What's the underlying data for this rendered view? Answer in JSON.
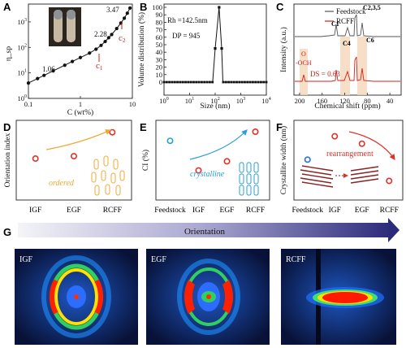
{
  "colors": {
    "red": "#d2201b",
    "orange": "#f0a830",
    "blue": "#2a9fd6",
    "arrow_red": "#e0302a",
    "dark_blue": "#2c2a7a"
  },
  "chart_data": [
    {
      "panel": "A",
      "type": "line",
      "scale": "log-log",
      "xlabel": "C (wt%)",
      "ylabel": "η_sp",
      "xticks": [
        "0.1",
        "1",
        "10"
      ],
      "yticks": [
        "10^0",
        "10^1",
        "10^2",
        "10^3"
      ],
      "x": [
        0.1,
        0.15,
        0.2,
        0.3,
        0.5,
        0.7,
        1.0,
        1.5,
        2.0,
        2.5,
        3.0,
        3.5,
        4.0,
        5.0,
        6.0,
        7.0,
        8.0,
        9.0
      ],
      "y": [
        4,
        6,
        8,
        12,
        20,
        28,
        40,
        60,
        85,
        120,
        170,
        240,
        320,
        550,
        900,
        1400,
        2200,
        3500
      ],
      "annotations": [
        "1.06",
        "2.28",
        "3.47",
        "c",
        "1",
        "c",
        "2"
      ]
    },
    {
      "panel": "B",
      "type": "line",
      "xlabel": "Size (nm)",
      "ylabel": "Volume distribution (%)",
      "xticks": [
        "10^0",
        "10^1",
        "10^2",
        "10^3",
        "10^4"
      ],
      "yticks": [
        "0",
        "10",
        "20",
        "30",
        "40",
        "50",
        "60",
        "70",
        "80",
        "90",
        "100"
      ],
      "x": [
        1,
        10,
        80,
        100,
        142.5,
        180,
        200,
        1000,
        10000
      ],
      "y": [
        0,
        0,
        0,
        45,
        100,
        45,
        0,
        0,
        0
      ],
      "annotations": [
        "Rh =142.5nm",
        "DP = 945"
      ]
    },
    {
      "panel": "C",
      "type": "line",
      "xlabel": "Chemical shift (ppm)",
      "ylabel": "Intensity (a.u.)",
      "xticks": [
        "200",
        "160",
        "120",
        "80",
        "40"
      ],
      "series": [
        {
          "name": "Feedstock"
        },
        {
          "name": "RCFF"
        }
      ],
      "peak_labels": [
        "C2,3,5",
        "C1",
        "C4",
        "C6"
      ],
      "annotations": [
        "O",
        "-OCH",
        "DS = 0.63"
      ]
    },
    {
      "panel": "D",
      "type": "scatter",
      "ylabel": "Orientation index",
      "categories": [
        "IGF",
        "EGF",
        "RCFF"
      ],
      "values": [
        0.52,
        0.55,
        0.85
      ],
      "annotations": [
        "ordered"
      ]
    },
    {
      "panel": "E",
      "type": "scatter",
      "ylabel": "CI (%)",
      "categories": [
        "Feedstock",
        "IGF",
        "EGF",
        "RCFF"
      ],
      "values": [
        52,
        26,
        34,
        60
      ],
      "annotations": [
        "crystalline"
      ]
    },
    {
      "panel": "F",
      "type": "scatter",
      "ylabel": "Crystallite width (nm)",
      "categories": [
        "Feedstock",
        "IGF",
        "EGF",
        "RCFF"
      ],
      "values": [
        0.38,
        0.6,
        0.53,
        0.18
      ],
      "annotations": [
        "rearrangement"
      ]
    }
  ],
  "panel_letters": {
    "A": "A",
    "B": "B",
    "C": "C",
    "D": "D",
    "E": "E",
    "F": "F",
    "G": "G"
  },
  "panel_g": {
    "title": "Orientation",
    "images": [
      "IGF",
      "EGF",
      "RCFF"
    ]
  }
}
